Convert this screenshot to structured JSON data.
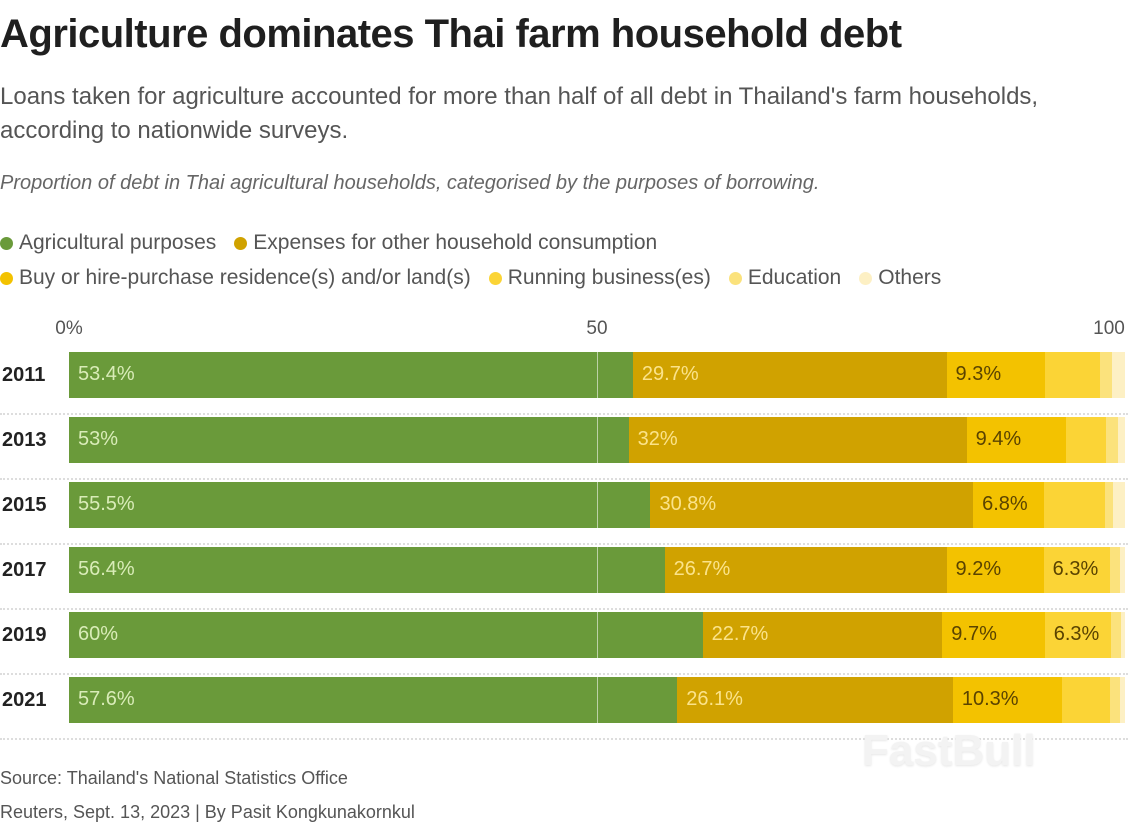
{
  "header": {
    "title": "Agriculture dominates Thai farm household debt",
    "subtitle": "Loans taken for agriculture accounted for more than half of all debt in Thailand's farm households, according to nationwide surveys.",
    "caption": "Proportion of debt in Thai agricultural households, categorised by the purposes of borrowing."
  },
  "legend": {
    "row1": [
      {
        "label": "Agricultural purposes",
        "color": "#6a9a3a"
      },
      {
        "label": "Expenses for other household consumption",
        "color": "#d0a200"
      }
    ],
    "row2": [
      {
        "label": "Buy or hire-purchase residence(s) and/or land(s)",
        "color": "#f3c200"
      },
      {
        "label": "Running business(es)",
        "color": "#fbd436"
      },
      {
        "label": "Education",
        "color": "#fbe27c"
      },
      {
        "label": "Others",
        "color": "#fdf0c4"
      }
    ]
  },
  "axis": {
    "ticks": [
      "0%",
      "50",
      "100"
    ]
  },
  "footer": {
    "source": "Source: Thailand's National Statistics Office",
    "credit": "Reuters, Sept. 13, 2023 | By Pasit Kongkunakornkul"
  },
  "watermark": "FastBull",
  "chart_data": {
    "type": "bar",
    "orientation": "horizontal",
    "stacked": true,
    "title": "Agriculture dominates Thai farm household debt",
    "subtitle": "Proportion of debt in Thai agricultural households, categorised by the purposes of borrowing.",
    "xlabel": "",
    "ylabel": "",
    "xlim": [
      0,
      100
    ],
    "x_ticks": [
      "0%",
      "50",
      "100"
    ],
    "grid": false,
    "legend_position": "top",
    "categories": [
      "2011",
      "2013",
      "2015",
      "2017",
      "2019",
      "2021"
    ],
    "series": [
      {
        "name": "Agricultural purposes",
        "color": "#6a9a3a",
        "values": [
          53.4,
          53.0,
          55.5,
          56.4,
          60.0,
          57.6
        ],
        "labels": [
          "53.4%",
          "53%",
          "55.5%",
          "56.4%",
          "60%",
          "57.6%"
        ]
      },
      {
        "name": "Expenses for other household consumption",
        "color": "#d0a200",
        "values": [
          29.7,
          32.0,
          30.8,
          26.7,
          22.7,
          26.1
        ],
        "labels": [
          "29.7%",
          "32%",
          "30.8%",
          "26.7%",
          "22.7%",
          "26.1%"
        ]
      },
      {
        "name": "Buy or hire-purchase residence(s) and/or land(s)",
        "color": "#f3c200",
        "values": [
          9.3,
          9.4,
          6.8,
          9.2,
          9.7,
          10.3
        ],
        "labels": [
          "9.3%",
          "9.4%",
          "6.8%",
          "9.2%",
          "9.7%",
          "10.3%"
        ]
      },
      {
        "name": "Running business(es)",
        "color": "#fbd436",
        "values": [
          5.2,
          3.8,
          5.8,
          6.3,
          6.3,
          4.6
        ],
        "labels": [
          "",
          "",
          "",
          "6.3%",
          "6.3%",
          ""
        ]
      },
      {
        "name": "Education",
        "color": "#fbe27c",
        "values": [
          1.2,
          1.1,
          0.8,
          0.9,
          0.9,
          0.9
        ],
        "labels": [
          "",
          "",
          "",
          "",
          "",
          ""
        ]
      },
      {
        "name": "Others",
        "color": "#fdf0c4",
        "values": [
          1.2,
          0.7,
          1.1,
          0.5,
          0.4,
          0.5
        ],
        "labels": [
          "",
          "",
          "",
          "",
          "",
          ""
        ]
      }
    ]
  }
}
